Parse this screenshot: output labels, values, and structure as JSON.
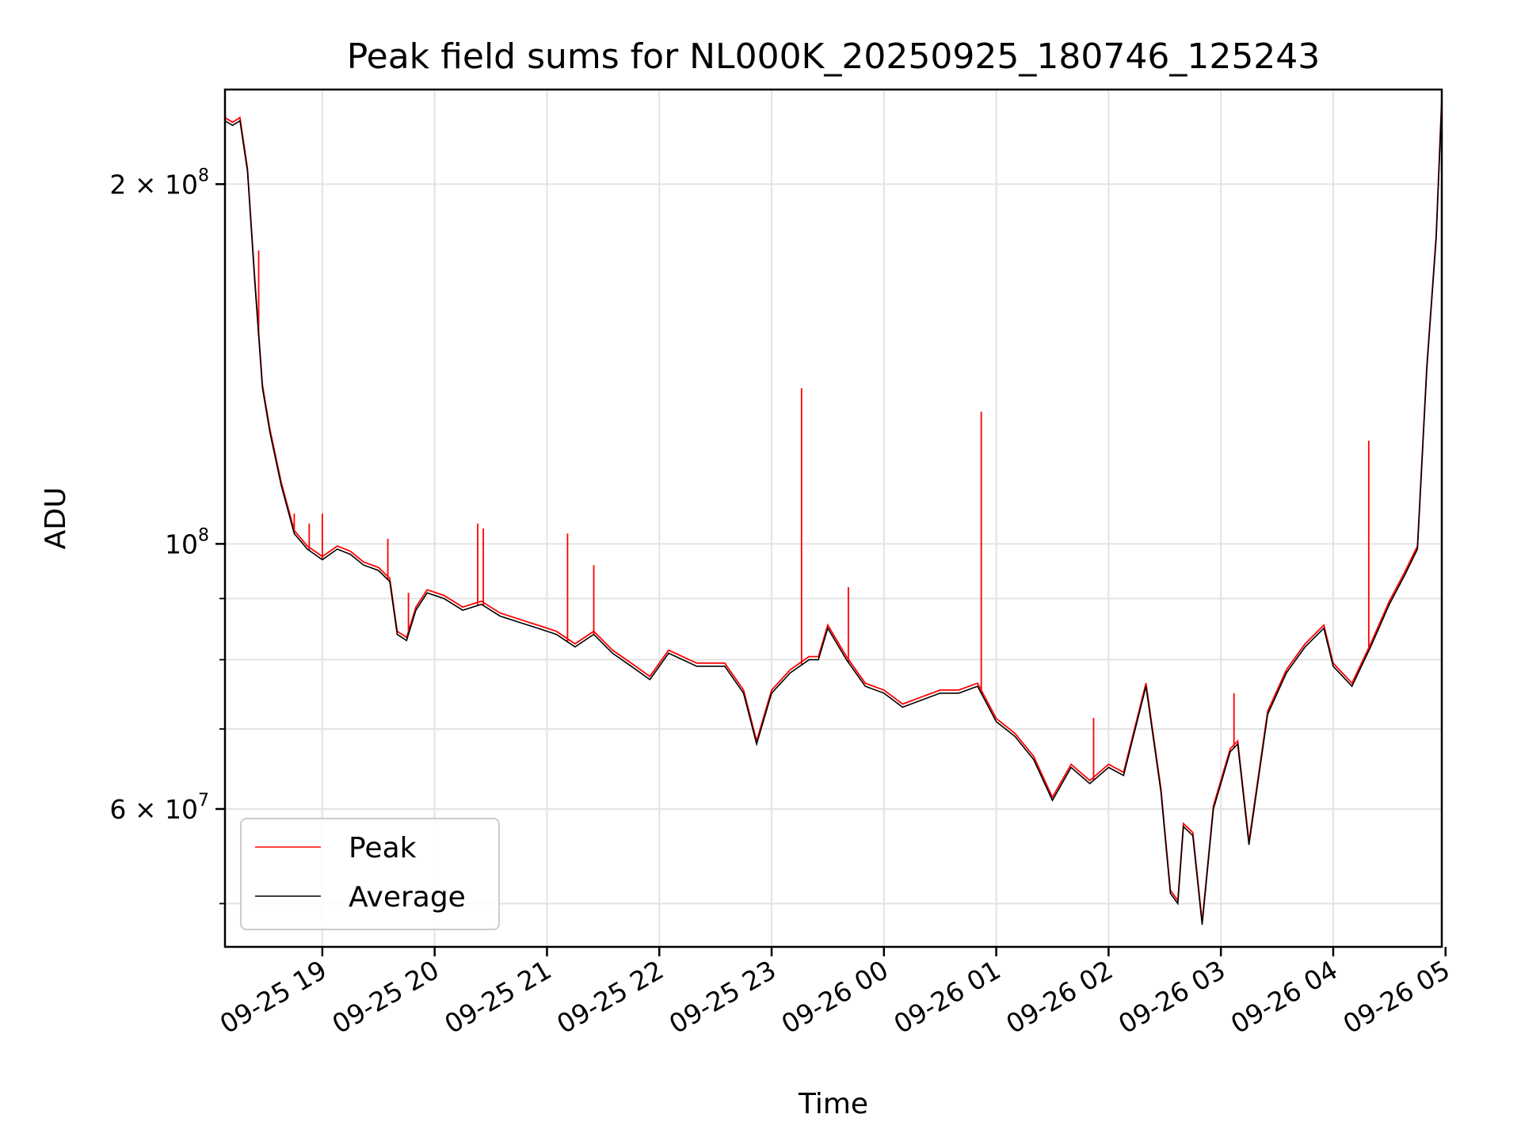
{
  "chart_data": {
    "type": "line",
    "title": "Peak field sums for NL000K_20250925_180746_125243",
    "xlabel": "Time",
    "ylabel": "ADU",
    "y_scale": "log",
    "ylim": [
      46000000,
      240000000
    ],
    "xlim": [
      "2025-09-25 18:08",
      "2025-09-26 04:58"
    ],
    "grid": true,
    "legend_position": "lower-left",
    "x_ticks": [
      "09-25 19",
      "09-25 20",
      "09-25 21",
      "09-25 22",
      "09-25 23",
      "09-26 00",
      "09-26 01",
      "09-26 02",
      "09-26 03",
      "09-26 04",
      "09-26 05"
    ],
    "x_tick_times": [
      "2025-09-25 19:00",
      "2025-09-25 20:00",
      "2025-09-25 21:00",
      "2025-09-25 22:00",
      "2025-09-25 23:00",
      "2025-09-26 00:00",
      "2025-09-26 01:00",
      "2025-09-26 02:00",
      "2025-09-26 03:00",
      "2025-09-26 04:00",
      "2025-09-26 05:00"
    ],
    "y_ticks": [
      {
        "value": 200000000,
        "base": "2 × 10",
        "exp": "8"
      },
      {
        "value": 100000000,
        "base": "10",
        "exp": "8"
      },
      {
        "value": 60000000,
        "base": "6 × 10",
        "exp": "7"
      }
    ],
    "y_minor_ticks": [
      50000000,
      70000000,
      80000000,
      90000000
    ],
    "series": [
      {
        "name": "Peak",
        "color": "#ff0000",
        "note_spikes": true,
        "spikes": [
          {
            "x": "2025-09-25 18:26",
            "y": 176000000
          },
          {
            "x": "2025-09-25 18:45",
            "y": 106000000
          },
          {
            "x": "2025-09-25 18:53",
            "y": 104000000
          },
          {
            "x": "2025-09-25 19:00",
            "y": 106000000
          },
          {
            "x": "2025-09-25 19:35",
            "y": 101000000
          },
          {
            "x": "2025-09-25 19:46",
            "y": 91000000
          },
          {
            "x": "2025-09-25 20:23",
            "y": 104000000
          },
          {
            "x": "2025-09-25 20:26",
            "y": 103000000
          },
          {
            "x": "2025-09-25 21:11",
            "y": 102000000
          },
          {
            "x": "2025-09-25 21:25",
            "y": 96000000
          },
          {
            "x": "2025-09-25 23:16",
            "y": 135000000
          },
          {
            "x": "2025-09-25 23:41",
            "y": 92000000
          },
          {
            "x": "2025-09-26 00:52",
            "y": 129000000
          },
          {
            "x": "2025-09-26 01:52",
            "y": 71500000
          },
          {
            "x": "2025-09-26 03:07",
            "y": 75000000
          },
          {
            "x": "2025-09-26 04:19",
            "y": 122000000
          }
        ]
      },
      {
        "name": "Average",
        "color": "#000000",
        "x": [
          "2025-09-25 18:08",
          "2025-09-25 18:12",
          "2025-09-25 18:16",
          "2025-09-25 18:20",
          "2025-09-25 18:24",
          "2025-09-25 18:28",
          "2025-09-25 18:32",
          "2025-09-25 18:38",
          "2025-09-25 18:45",
          "2025-09-25 18:52",
          "2025-09-25 19:00",
          "2025-09-25 19:08",
          "2025-09-25 19:15",
          "2025-09-25 19:22",
          "2025-09-25 19:30",
          "2025-09-25 19:36",
          "2025-09-25 19:40",
          "2025-09-25 19:45",
          "2025-09-25 19:50",
          "2025-09-25 19:56",
          "2025-09-25 20:05",
          "2025-09-25 20:15",
          "2025-09-25 20:25",
          "2025-09-25 20:35",
          "2025-09-25 20:45",
          "2025-09-25 20:55",
          "2025-09-25 21:05",
          "2025-09-25 21:15",
          "2025-09-25 21:25",
          "2025-09-25 21:35",
          "2025-09-25 21:45",
          "2025-09-25 21:55",
          "2025-09-25 22:05",
          "2025-09-25 22:20",
          "2025-09-25 22:35",
          "2025-09-25 22:45",
          "2025-09-25 22:52",
          "2025-09-25 23:00",
          "2025-09-25 23:10",
          "2025-09-25 23:20",
          "2025-09-25 23:25",
          "2025-09-25 23:30",
          "2025-09-25 23:40",
          "2025-09-25 23:50",
          "2025-09-26 00:00",
          "2025-09-26 00:10",
          "2025-09-26 00:20",
          "2025-09-26 00:30",
          "2025-09-26 00:40",
          "2025-09-26 00:50",
          "2025-09-26 01:00",
          "2025-09-26 01:10",
          "2025-09-26 01:20",
          "2025-09-26 01:30",
          "2025-09-26 01:40",
          "2025-09-26 01:50",
          "2025-09-26 02:00",
          "2025-09-26 02:08",
          "2025-09-26 02:20",
          "2025-09-26 02:28",
          "2025-09-26 02:33",
          "2025-09-26 02:37",
          "2025-09-26 02:40",
          "2025-09-26 02:45",
          "2025-09-26 02:50",
          "2025-09-26 02:56",
          "2025-09-26 03:05",
          "2025-09-26 03:09",
          "2025-09-26 03:15",
          "2025-09-26 03:25",
          "2025-09-26 03:35",
          "2025-09-26 03:45",
          "2025-09-26 03:55",
          "2025-09-26 04:00",
          "2025-09-26 04:10",
          "2025-09-26 04:20",
          "2025-09-26 04:30",
          "2025-09-26 04:38",
          "2025-09-26 04:45",
          "2025-09-26 04:50",
          "2025-09-26 04:55",
          "2025-09-26 04:58"
        ],
        "values": [
          226000000,
          224000000,
          226000000,
          205000000,
          165000000,
          135000000,
          124000000,
          112000000,
          102000000,
          99000000,
          97000000,
          99000000,
          98000000,
          96000000,
          95000000,
          93000000,
          84000000,
          83000000,
          88000000,
          91000000,
          90000000,
          88000000,
          89000000,
          87000000,
          86000000,
          85000000,
          84000000,
          82000000,
          84000000,
          81000000,
          79000000,
          77000000,
          81000000,
          79000000,
          79000000,
          75000000,
          68000000,
          75000000,
          78000000,
          80000000,
          80000000,
          85000000,
          80000000,
          76000000,
          75000000,
          73000000,
          74000000,
          75000000,
          75000000,
          76000000,
          71000000,
          69000000,
          66000000,
          61000000,
          65000000,
          63000000,
          65000000,
          64000000,
          76000000,
          62000000,
          51000000,
          50000000,
          58000000,
          57000000,
          48000000,
          60000000,
          67000000,
          68000000,
          56000000,
          72000000,
          78000000,
          82000000,
          85000000,
          79000000,
          76000000,
          82000000,
          89000000,
          94000000,
          99000000,
          140000000,
          180000000,
          235000000
        ]
      }
    ]
  }
}
